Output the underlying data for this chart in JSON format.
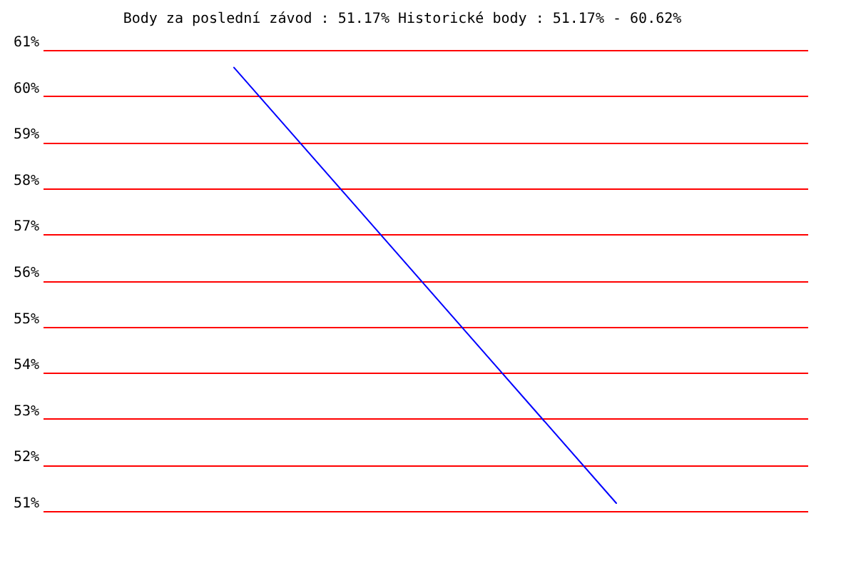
{
  "chart_data": {
    "type": "line",
    "title": "Body za poslední závod : 51.17%  Historické body : 51.17% - 60.62%",
    "categories": [
      null,
      null
    ],
    "values": [
      60.62,
      51.17
    ],
    "color": "#0000ff",
    "ylim": [
      51,
      61
    ],
    "yticks": [
      {
        "value": 51,
        "label": "51%"
      },
      {
        "value": 52,
        "label": "52%"
      },
      {
        "value": 53,
        "label": "53%"
      },
      {
        "value": 54,
        "label": "54%"
      },
      {
        "value": 55,
        "label": "55%"
      },
      {
        "value": 56,
        "label": "56%"
      },
      {
        "value": 57,
        "label": "57%"
      },
      {
        "value": 58,
        "label": "58%"
      },
      {
        "value": 59,
        "label": "59%"
      },
      {
        "value": 60,
        "label": "60%"
      },
      {
        "value": 61,
        "label": "61%"
      }
    ],
    "grid": "y",
    "tick_labels": "y"
  }
}
